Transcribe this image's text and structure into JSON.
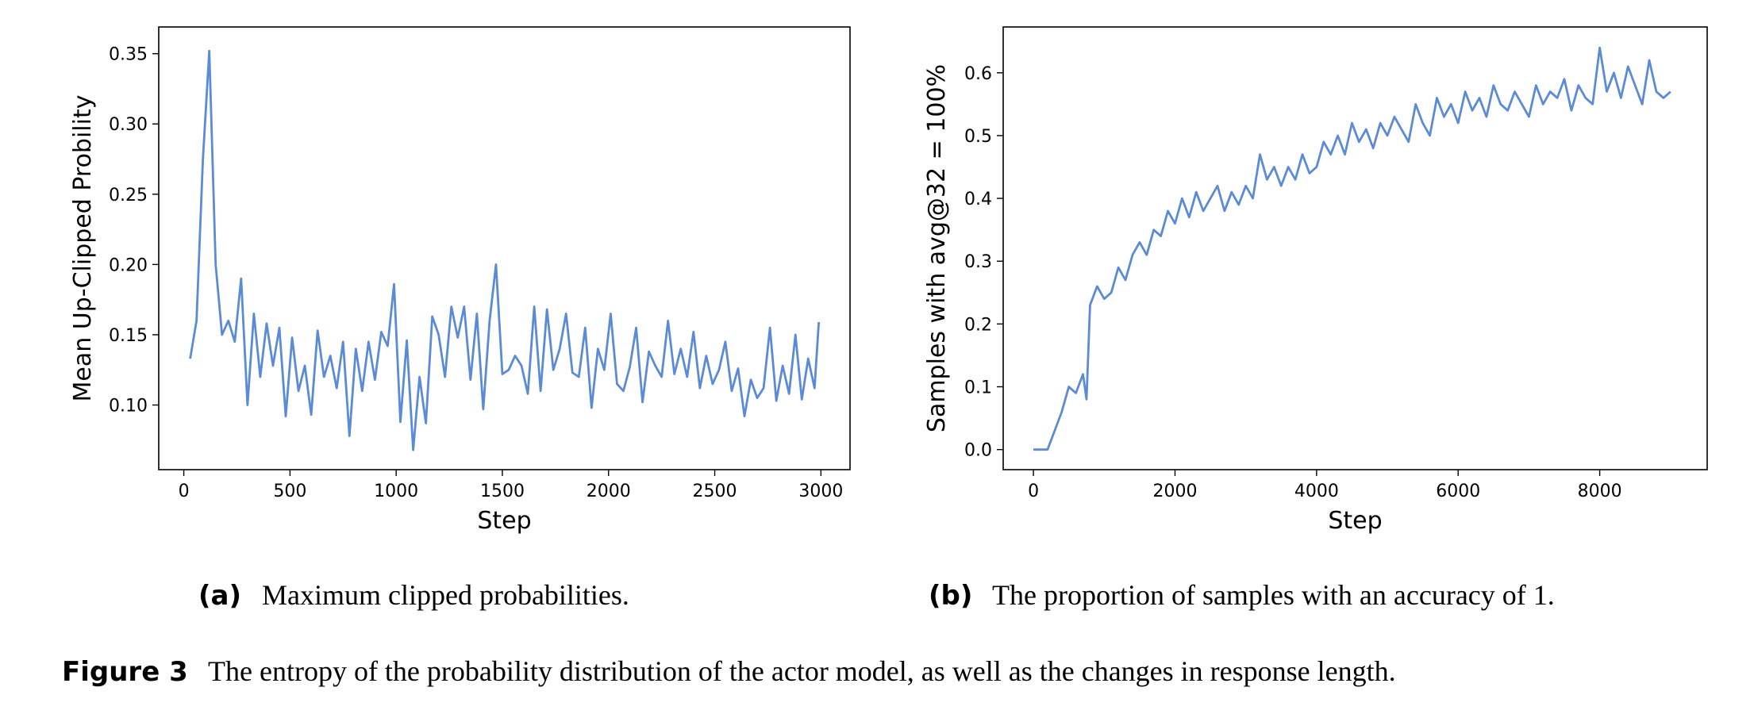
{
  "chart_data": [
    {
      "type": "line",
      "xlabel": "Step",
      "ylabel": "Mean Up-Clipped Probility",
      "caption_label": "(a)",
      "caption": "Maximum clipped probabilities.",
      "xlim": [
        -118,
        3137
      ],
      "ylim": [
        0.054,
        0.369
      ],
      "xticks": [
        0,
        500,
        1000,
        1500,
        2000,
        2500,
        3000
      ],
      "yticks": [
        0.1,
        0.15,
        0.2,
        0.25,
        0.3,
        0.35
      ],
      "grid": false,
      "series": [
        {
          "color": "#5b8bd6",
          "x": [
            30,
            60,
            90,
            120,
            150,
            180,
            210,
            240,
            270,
            300,
            330,
            360,
            390,
            420,
            450,
            480,
            510,
            540,
            570,
            600,
            630,
            660,
            690,
            720,
            750,
            780,
            810,
            840,
            870,
            900,
            930,
            960,
            990,
            1020,
            1050,
            1080,
            1110,
            1140,
            1170,
            1200,
            1230,
            1260,
            1290,
            1320,
            1350,
            1380,
            1410,
            1440,
            1470,
            1500,
            1530,
            1560,
            1590,
            1620,
            1650,
            1680,
            1710,
            1740,
            1770,
            1800,
            1830,
            1860,
            1890,
            1920,
            1950,
            1980,
            2010,
            2040,
            2070,
            2100,
            2130,
            2160,
            2190,
            2220,
            2250,
            2280,
            2310,
            2340,
            2370,
            2400,
            2430,
            2460,
            2490,
            2520,
            2550,
            2580,
            2610,
            2640,
            2670,
            2700,
            2730,
            2760,
            2790,
            2820,
            2850,
            2880,
            2910,
            2940,
            2970,
            2990
          ],
          "values": [
            0.133,
            0.16,
            0.275,
            0.352,
            0.2,
            0.15,
            0.16,
            0.145,
            0.19,
            0.1,
            0.165,
            0.12,
            0.158,
            0.128,
            0.155,
            0.092,
            0.148,
            0.11,
            0.128,
            0.093,
            0.153,
            0.12,
            0.135,
            0.112,
            0.145,
            0.078,
            0.14,
            0.11,
            0.145,
            0.118,
            0.152,
            0.142,
            0.186,
            0.088,
            0.146,
            0.068,
            0.12,
            0.087,
            0.163,
            0.15,
            0.12,
            0.17,
            0.148,
            0.17,
            0.118,
            0.165,
            0.097,
            0.16,
            0.2,
            0.122,
            0.125,
            0.135,
            0.128,
            0.108,
            0.17,
            0.11,
            0.168,
            0.125,
            0.14,
            0.165,
            0.123,
            0.12,
            0.155,
            0.098,
            0.14,
            0.125,
            0.165,
            0.115,
            0.11,
            0.127,
            0.155,
            0.102,
            0.138,
            0.128,
            0.12,
            0.16,
            0.122,
            0.14,
            0.12,
            0.152,
            0.112,
            0.135,
            0.115,
            0.125,
            0.145,
            0.11,
            0.126,
            0.092,
            0.118,
            0.105,
            0.112,
            0.155,
            0.103,
            0.128,
            0.108,
            0.15,
            0.104,
            0.133,
            0.112,
            0.159
          ]
        }
      ]
    },
    {
      "type": "line",
      "xlabel": "Step",
      "ylabel": "Samples with avg@32 = 100%",
      "caption_label": "(b)",
      "caption": "The proportion of samples with an accuracy of 1.",
      "xlim": [
        -427,
        9518
      ],
      "ylim": [
        -0.032,
        0.673
      ],
      "xticks": [
        0,
        2000,
        4000,
        6000,
        8000
      ],
      "yticks": [
        0.0,
        0.1,
        0.2,
        0.3,
        0.4,
        0.5,
        0.6
      ],
      "grid": false,
      "series": [
        {
          "color": "#5b8bd6",
          "x": [
            0,
            100,
            200,
            300,
            400,
            500,
            600,
            700,
            750,
            800,
            900,
            1000,
            1100,
            1200,
            1300,
            1400,
            1500,
            1600,
            1700,
            1800,
            1900,
            2000,
            2100,
            2200,
            2300,
            2400,
            2500,
            2600,
            2700,
            2800,
            2900,
            3000,
            3100,
            3200,
            3300,
            3400,
            3500,
            3600,
            3700,
            3800,
            3900,
            4000,
            4100,
            4200,
            4300,
            4400,
            4500,
            4600,
            4700,
            4800,
            4900,
            5000,
            5100,
            5200,
            5300,
            5400,
            5500,
            5600,
            5700,
            5800,
            5900,
            6000,
            6100,
            6200,
            6300,
            6400,
            6500,
            6600,
            6700,
            6800,
            6900,
            7000,
            7100,
            7200,
            7300,
            7400,
            7500,
            7600,
            7700,
            7800,
            7900,
            8000,
            8100,
            8200,
            8300,
            8400,
            8500,
            8600,
            8700,
            8800,
            8900,
            9000
          ],
          "values": [
            0.0,
            0.0,
            0.0,
            0.03,
            0.06,
            0.1,
            0.09,
            0.12,
            0.08,
            0.23,
            0.26,
            0.24,
            0.25,
            0.29,
            0.27,
            0.31,
            0.33,
            0.31,
            0.35,
            0.34,
            0.38,
            0.36,
            0.4,
            0.37,
            0.41,
            0.38,
            0.4,
            0.42,
            0.38,
            0.41,
            0.39,
            0.42,
            0.4,
            0.47,
            0.43,
            0.45,
            0.42,
            0.45,
            0.43,
            0.47,
            0.44,
            0.45,
            0.49,
            0.47,
            0.5,
            0.47,
            0.52,
            0.49,
            0.51,
            0.48,
            0.52,
            0.5,
            0.53,
            0.51,
            0.49,
            0.55,
            0.52,
            0.5,
            0.56,
            0.53,
            0.55,
            0.52,
            0.57,
            0.54,
            0.56,
            0.53,
            0.58,
            0.55,
            0.54,
            0.57,
            0.55,
            0.53,
            0.58,
            0.55,
            0.57,
            0.56,
            0.59,
            0.54,
            0.58,
            0.56,
            0.55,
            0.64,
            0.57,
            0.6,
            0.56,
            0.61,
            0.58,
            0.55,
            0.62,
            0.57,
            0.56,
            0.57
          ]
        }
      ]
    }
  ],
  "figure": {
    "label": "Figure 3",
    "caption": "The entropy of the probability distribution of the actor model, as well as the changes in response length."
  }
}
